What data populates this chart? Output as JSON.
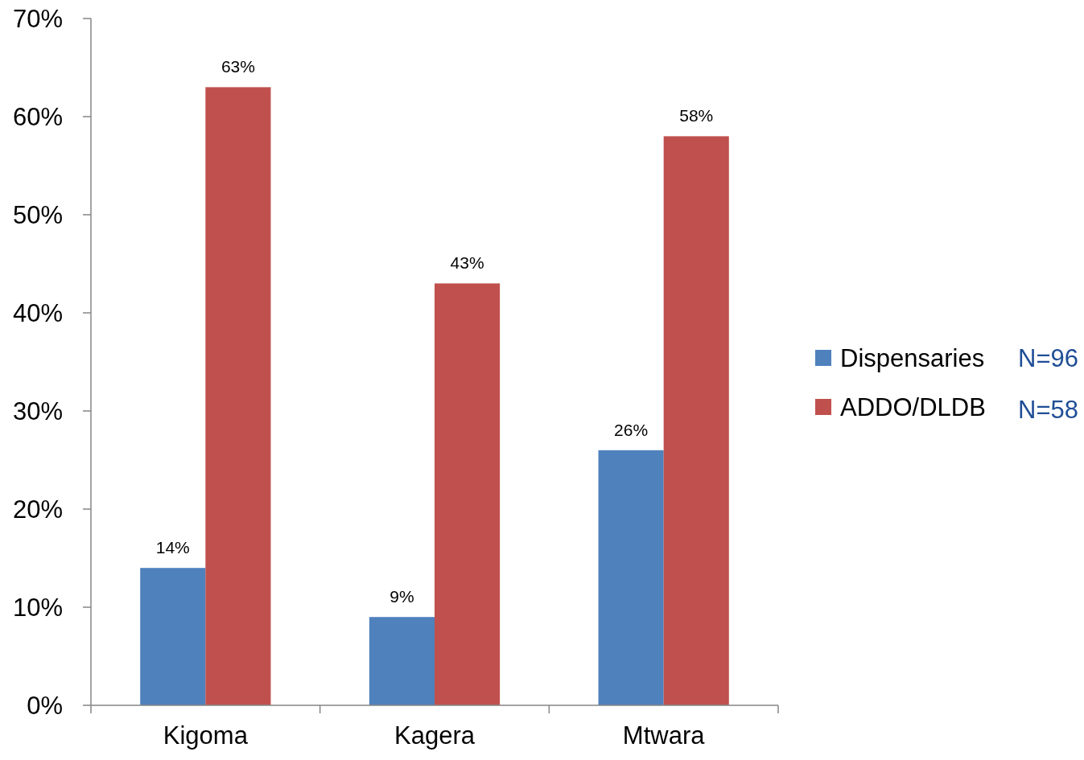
{
  "chart_data": {
    "type": "bar",
    "categories": [
      "Kigoma",
      "Kagera",
      "Mtwara"
    ],
    "series": [
      {
        "name": "Dispensaries",
        "color": "#4f81bd",
        "values": [
          14,
          9,
          26
        ],
        "value_labels": [
          "14%",
          "9%",
          "26%"
        ]
      },
      {
        "name": "ADDO/DLDB",
        "color": "#c0504d",
        "values": [
          63,
          43,
          58
        ],
        "value_labels": [
          "63%",
          "43%",
          "58%"
        ]
      }
    ],
    "ylim": [
      0,
      70
    ],
    "yticks": [
      {
        "value": 0,
        "label": "0%"
      },
      {
        "value": 10,
        "label": "10%"
      },
      {
        "value": 20,
        "label": "20%"
      },
      {
        "value": 30,
        "label": "30%"
      },
      {
        "value": 40,
        "label": "40%"
      },
      {
        "value": 50,
        "label": "50%"
      },
      {
        "value": 60,
        "label": "60%"
      },
      {
        "value": 70,
        "label": "70%"
      }
    ],
    "legend": "right",
    "annotations": [
      "N=96",
      "N=58"
    ]
  }
}
